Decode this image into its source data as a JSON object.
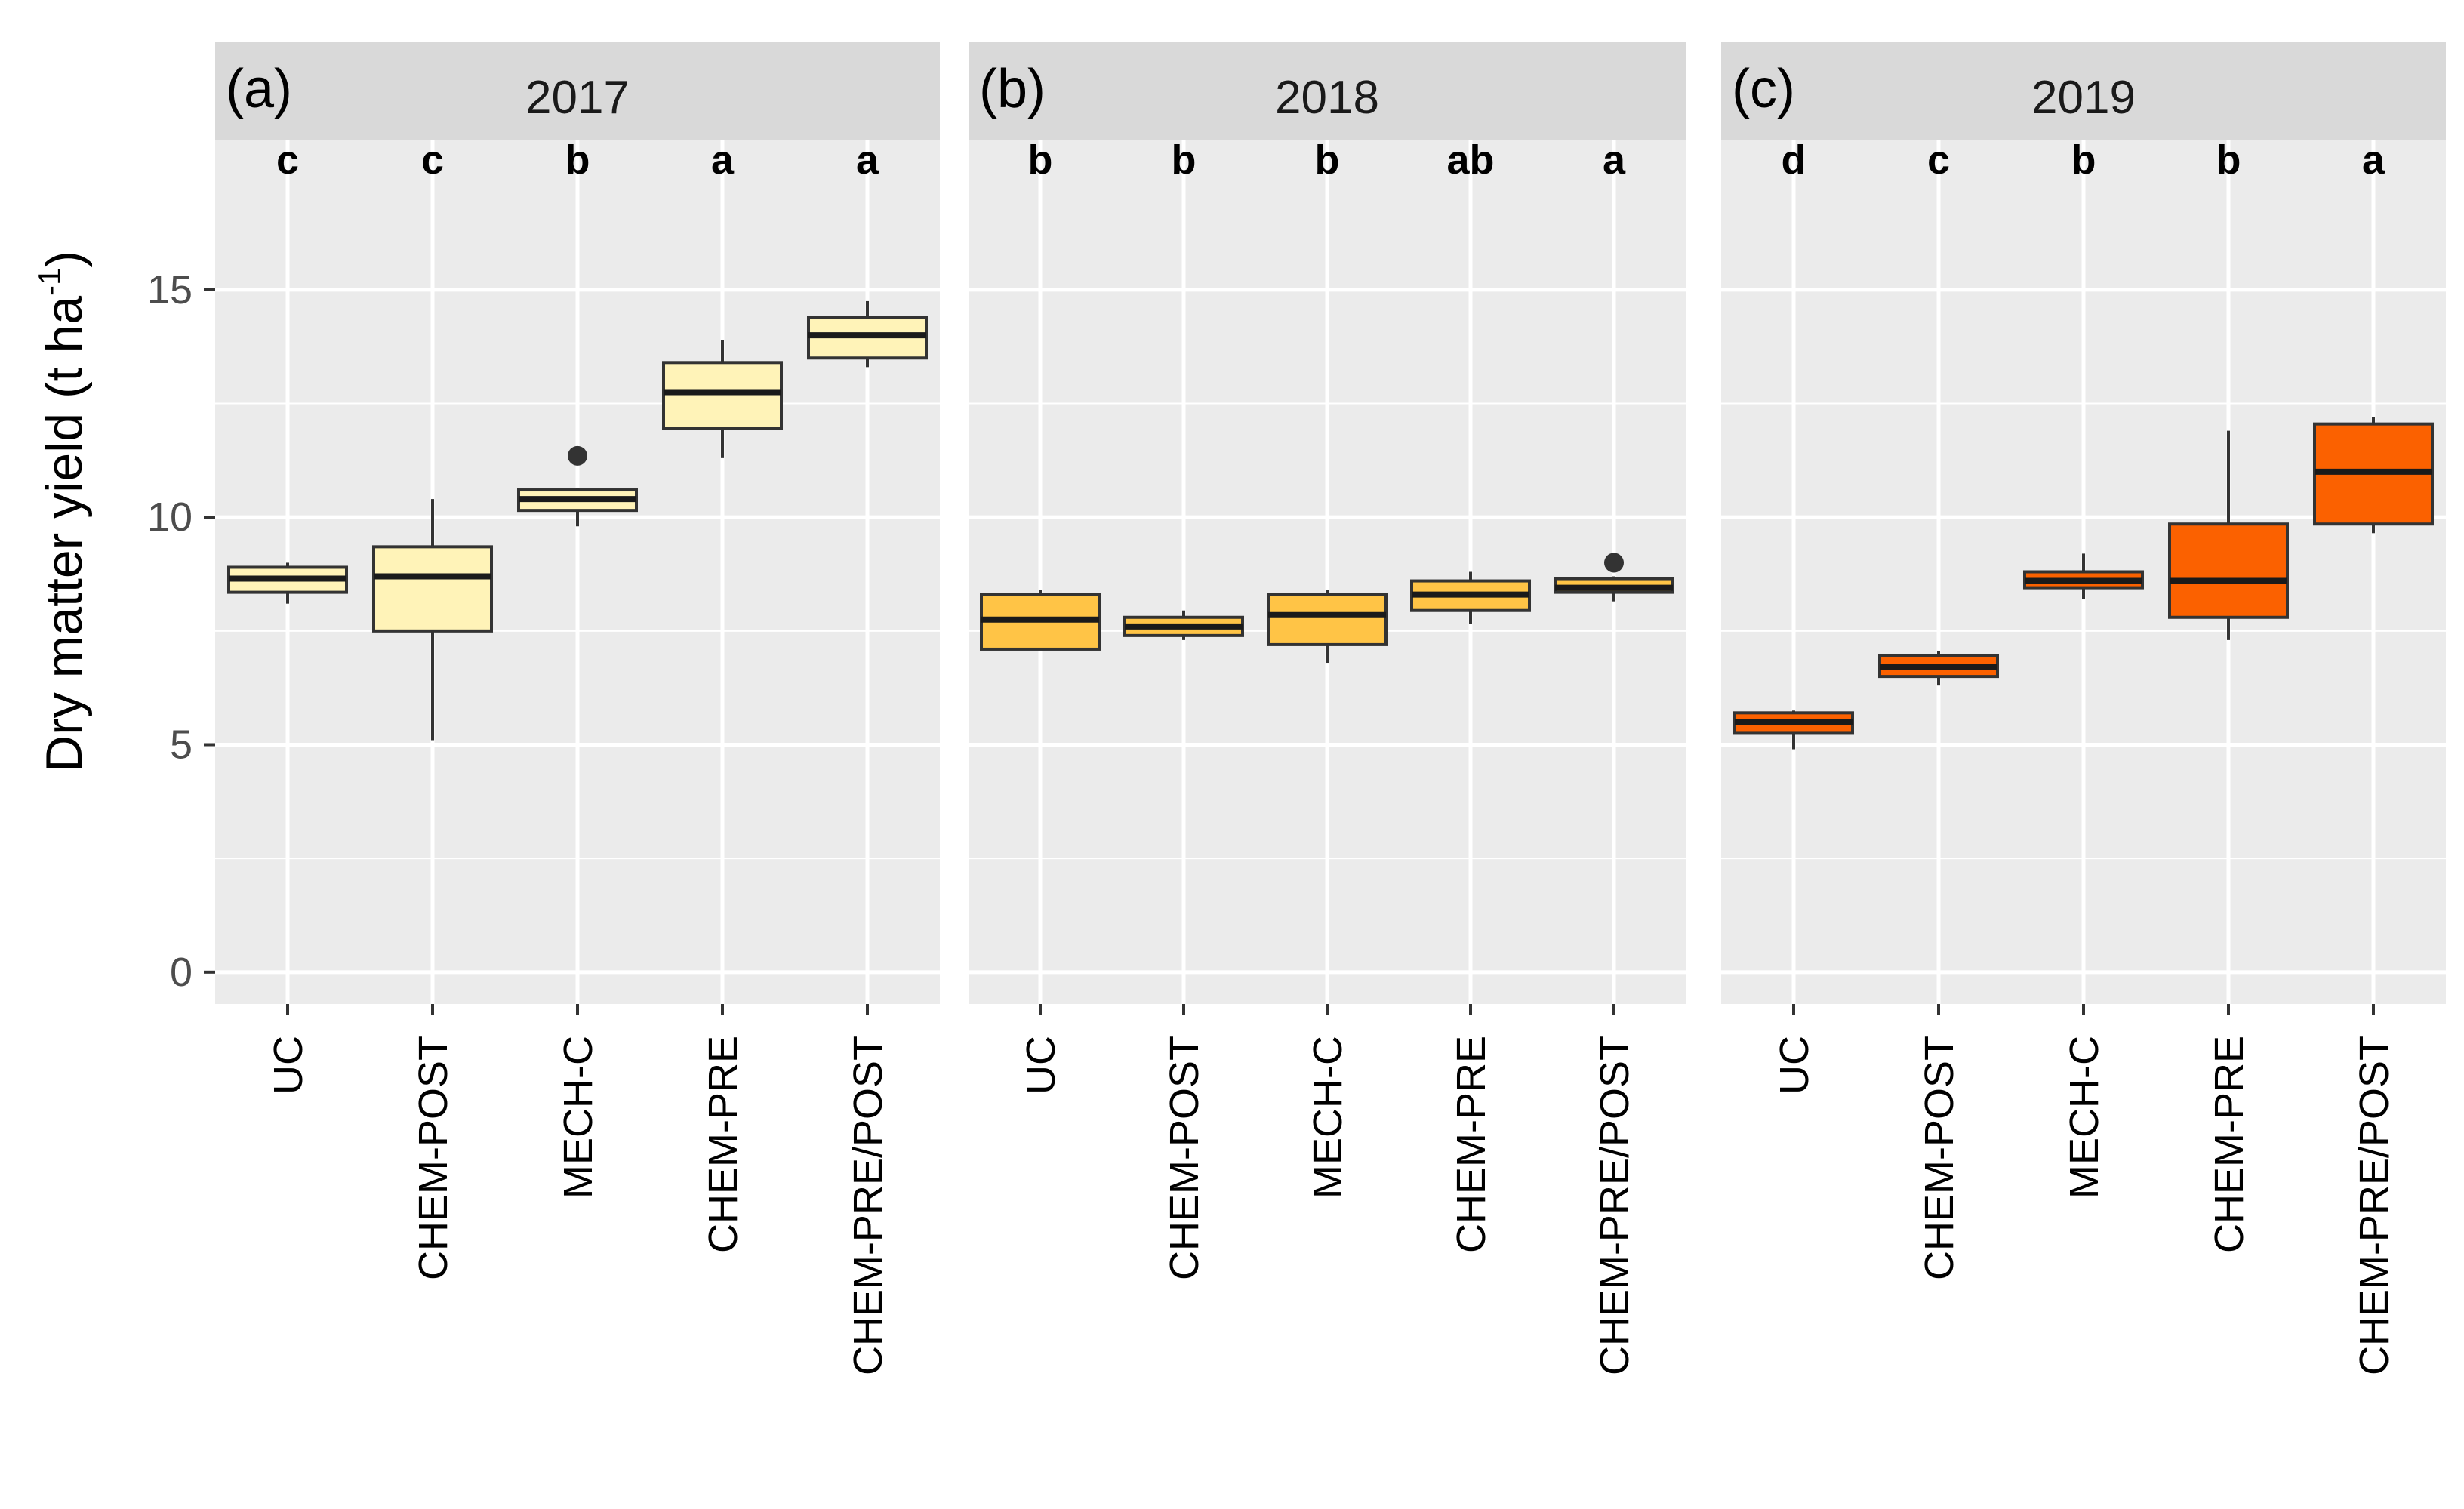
{
  "chart_data": {
    "type": "boxplot",
    "ylabel": "Dry matter yield (t ha",
    "ylabel_superscript": "-1",
    "ylabel_suffix": ")",
    "ylim": [
      -0.7,
      18.3
    ],
    "y_ticks": [
      0,
      5,
      10,
      15
    ],
    "y_tick_labels": [
      "0",
      "5",
      "10",
      "15"
    ],
    "y_minor_gridlines": [
      2.5,
      7.5,
      12.5
    ],
    "categories": [
      "UC",
      "CHEM-POST",
      "MECH-C",
      "CHEM-PRE",
      "CHEM-PRE/POST"
    ],
    "panels": [
      {
        "tag": "(a)",
        "title": "2017",
        "fill": "#FFF3B8",
        "letters": [
          "c",
          "c",
          "b",
          "a",
          "a"
        ],
        "boxes": [
          {
            "min": 8.1,
            "q1": 8.35,
            "median": 8.65,
            "q3": 8.9,
            "max": 9.0,
            "outliers": []
          },
          {
            "min": 5.1,
            "q1": 7.5,
            "median": 8.7,
            "q3": 9.35,
            "max": 10.4,
            "outliers": []
          },
          {
            "min": 9.8,
            "q1": 10.15,
            "median": 10.4,
            "q3": 10.6,
            "max": 10.65,
            "outliers": [
              11.35
            ]
          },
          {
            "min": 11.3,
            "q1": 11.95,
            "median": 12.75,
            "q3": 13.4,
            "max": 13.9,
            "outliers": []
          },
          {
            "min": 13.3,
            "q1": 13.5,
            "median": 14.0,
            "q3": 14.4,
            "max": 14.75,
            "outliers": []
          }
        ]
      },
      {
        "tag": "(b)",
        "title": "2018",
        "fill": "#FFC446",
        "letters": [
          "b",
          "b",
          "b",
          "ab",
          "a"
        ],
        "boxes": [
          {
            "min": 7.1,
            "q1": 7.1,
            "median": 7.75,
            "q3": 8.3,
            "max": 8.4,
            "outliers": []
          },
          {
            "min": 7.3,
            "q1": 7.4,
            "median": 7.6,
            "q3": 7.8,
            "max": 7.95,
            "outliers": []
          },
          {
            "min": 6.8,
            "q1": 7.2,
            "median": 7.85,
            "q3": 8.3,
            "max": 8.4,
            "outliers": []
          },
          {
            "min": 7.65,
            "q1": 7.95,
            "median": 8.3,
            "q3": 8.6,
            "max": 8.8,
            "outliers": []
          },
          {
            "min": 8.15,
            "q1": 8.35,
            "median": 8.45,
            "q3": 8.65,
            "max": 8.7,
            "outliers": [
              9.0
            ]
          }
        ]
      },
      {
        "tag": "(c)",
        "title": "2019",
        "fill": "#FB6100",
        "letters": [
          "d",
          "c",
          "b",
          "b",
          "a"
        ],
        "boxes": [
          {
            "min": 4.9,
            "q1": 5.25,
            "median": 5.5,
            "q3": 5.7,
            "max": 5.75,
            "outliers": []
          },
          {
            "min": 6.3,
            "q1": 6.5,
            "median": 6.7,
            "q3": 6.95,
            "max": 7.05,
            "outliers": []
          },
          {
            "min": 8.2,
            "q1": 8.45,
            "median": 8.6,
            "q3": 8.8,
            "max": 9.2,
            "outliers": []
          },
          {
            "min": 7.3,
            "q1": 7.8,
            "median": 8.6,
            "q3": 9.85,
            "max": 11.9,
            "outliers": []
          },
          {
            "min": 9.65,
            "q1": 9.85,
            "median": 11.0,
            "q3": 12.05,
            "max": 12.2,
            "outliers": []
          }
        ]
      }
    ]
  }
}
